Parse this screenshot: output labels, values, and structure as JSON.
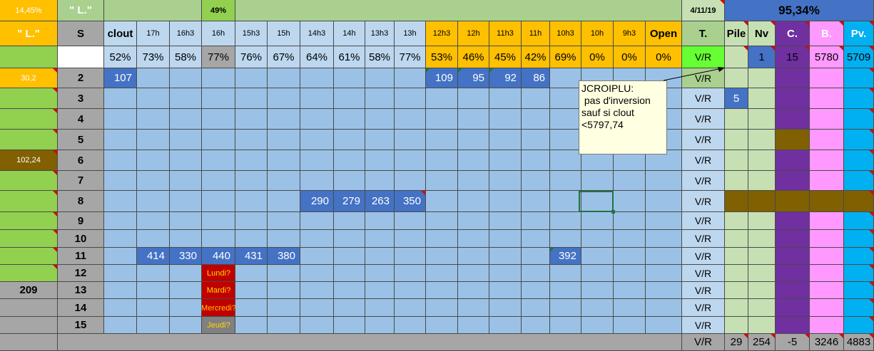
{
  "colors": {
    "gold": "#ffc000",
    "green_light": "#a9d08e",
    "green_mid": "#92d050",
    "green_pale": "#c6e0b4",
    "green_bright": "#66ff33",
    "grey_header": "#a6a6a6",
    "grey_dark": "#808080",
    "blue_light": "#bdd7ee",
    "blue_cell": "#9bc2e6",
    "blue_value": "#4472c4",
    "blue_top": "#4472c4",
    "brown": "#806000",
    "dark_red": "#c00000",
    "purple": "#7030a0",
    "pink": "#ff99ff",
    "sky": "#00b0f0",
    "white": "#ffffff"
  },
  "top_bar": {
    "pct_left": "14,45%",
    "label_l": "\" L.\"",
    "pct_center": "49%",
    "date": "4/11/19",
    "pct_right": "95,34%"
  },
  "side_panel": {
    "label_l": "\" L.\"",
    "value_gold": "30,2",
    "value_brown": "102,24",
    "total": "209"
  },
  "columns": [
    "clout",
    "17h",
    "16h3",
    "16h",
    "15h3",
    "15h",
    "14h3",
    "14h",
    "13h3",
    "13h",
    "12h3",
    "12h",
    "11h3",
    "11h",
    "10h3",
    "10h",
    "9h3",
    "Open"
  ],
  "row_header_label": "S",
  "percents": [
    "52%",
    "73%",
    "58%",
    "77%",
    "76%",
    "67%",
    "64%",
    "61%",
    "58%",
    "77%",
    "53%",
    "46%",
    "45%",
    "42%",
    "69%",
    "0%",
    "0%",
    "0%"
  ],
  "rows": [
    "2",
    "3",
    "4",
    "5",
    "6",
    "7",
    "8",
    "9",
    "10",
    "11",
    "12",
    "13",
    "14",
    "15"
  ],
  "row_values": {
    "r2": {
      "clout": "107",
      "12h3": "109",
      "12h": "95",
      "11h3": "92",
      "11h": "86"
    },
    "r8": {
      "14h3": "290",
      "14h": "279",
      "13h3": "263",
      "13h": "350"
    },
    "r11": {
      "17h": "414",
      "16h3": "330",
      "16h": "440",
      "15h3": "431",
      "15h": "380",
      "10h3": "392"
    }
  },
  "day_labels": [
    "Lundi?",
    "Mardi?",
    "Mercredi?",
    "Jeudi?"
  ],
  "comment": {
    "author": "JCROIPLU:",
    "text": " pas d'inversion\nsauf si clout\n<5797,74"
  },
  "right_panel": {
    "headers": [
      "T.",
      "Pile",
      "Nv",
      "C.",
      "B.",
      "Pv."
    ],
    "summary": [
      "V/R",
      "",
      "1",
      "15",
      "5780",
      "5709"
    ],
    "pile_value_row3": "5",
    "vr_label": "V/R",
    "footer": [
      "V/R",
      "29",
      "254",
      "-5",
      "3246",
      "4883"
    ]
  }
}
